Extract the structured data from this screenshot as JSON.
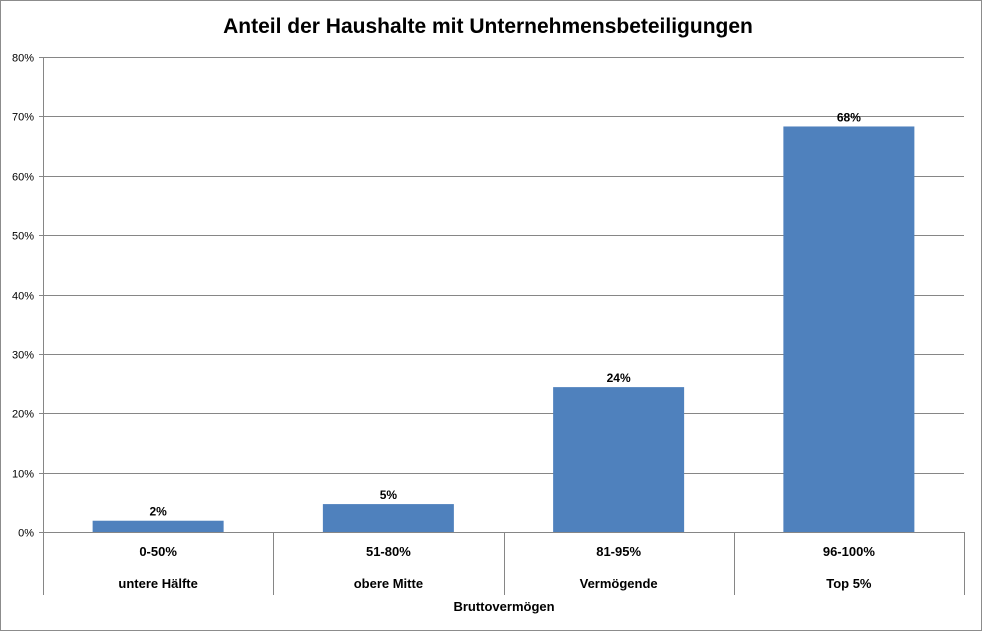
{
  "chart_data": {
    "type": "bar",
    "title": "Anteil der Haushalte mit Unternehmensbeteiligungen",
    "xlabel": "Bruttovermögen",
    "ylabel": "",
    "ylim": [
      0,
      80
    ],
    "yticks": [
      "0%",
      "10%",
      "20%",
      "30%",
      "40%",
      "50%",
      "60%",
      "70%",
      "80%"
    ],
    "grid": true,
    "legend": "none",
    "categories": [
      "0-50%",
      "51-80%",
      "81-95%",
      "96-100%"
    ],
    "category_sublabels": [
      "untere Hälfte",
      "obere Mitte",
      "Vermögende",
      "Top 5%"
    ],
    "values": [
      1.9,
      4.7,
      24.4,
      68.3
    ],
    "data_labels": [
      "2%",
      "5%",
      "24%",
      "68%"
    ],
    "colors": {
      "bar": "#4f81bd",
      "grid": "#868686",
      "axis": "#868686"
    }
  }
}
